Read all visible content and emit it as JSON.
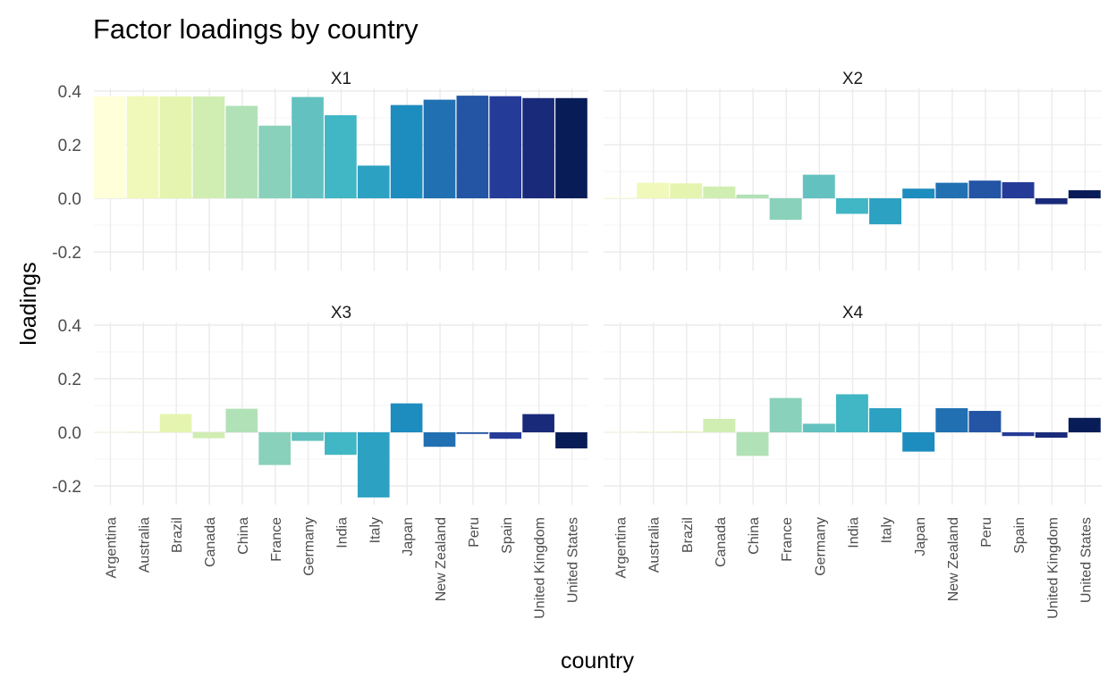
{
  "chart_data": {
    "type": "bar",
    "title": "Factor loadings by country",
    "xlabel": "country",
    "ylabel": "loadings",
    "ylim": [
      -0.27,
      0.41
    ],
    "yticks": [
      -0.2,
      0.0,
      0.2,
      0.4
    ],
    "ytick_labels": [
      "-0.2",
      "0.0",
      "0.2",
      "0.4"
    ],
    "grid": true,
    "legend": "none",
    "categories": [
      "Argentina",
      "Australia",
      "Brazil",
      "Canada",
      "China",
      "France",
      "Germany",
      "India",
      "Italy",
      "Japan",
      "New Zealand",
      "Peru",
      "Spain",
      "United Kingdom",
      "United States"
    ],
    "colors": [
      "#FFFFD9",
      "#F1F9BA",
      "#E5F5B0",
      "#D0EDB2",
      "#B1E1B6",
      "#89D1BA",
      "#63C2BF",
      "#41B6C4",
      "#2CA1C2",
      "#1D8CBE",
      "#2170B2",
      "#2355A4",
      "#253B98",
      "#1A2A7A",
      "#081D58"
    ],
    "panels": [
      {
        "name": "X1",
        "values": [
          0.38,
          0.381,
          0.38,
          0.38,
          0.345,
          0.271,
          0.378,
          0.31,
          0.122,
          0.348,
          0.368,
          0.383,
          0.381,
          0.374,
          0.374
        ]
      },
      {
        "name": "X2",
        "values": [
          0.004,
          0.058,
          0.056,
          0.044,
          0.014,
          -0.08,
          0.088,
          -0.058,
          -0.097,
          0.036,
          0.058,
          0.066,
          0.06,
          -0.022,
          0.03
        ]
      },
      {
        "name": "X3",
        "values": [
          0.001,
          0.002,
          0.068,
          -0.022,
          0.088,
          -0.122,
          -0.032,
          -0.084,
          -0.243,
          0.108,
          -0.054,
          -0.006,
          -0.024,
          0.068,
          -0.06
        ]
      },
      {
        "name": "X4",
        "values": [
          0.001,
          0.002,
          0.003,
          0.05,
          -0.088,
          0.128,
          0.032,
          0.142,
          0.09,
          -0.072,
          0.09,
          0.08,
          -0.014,
          -0.02,
          0.054
        ]
      }
    ]
  }
}
